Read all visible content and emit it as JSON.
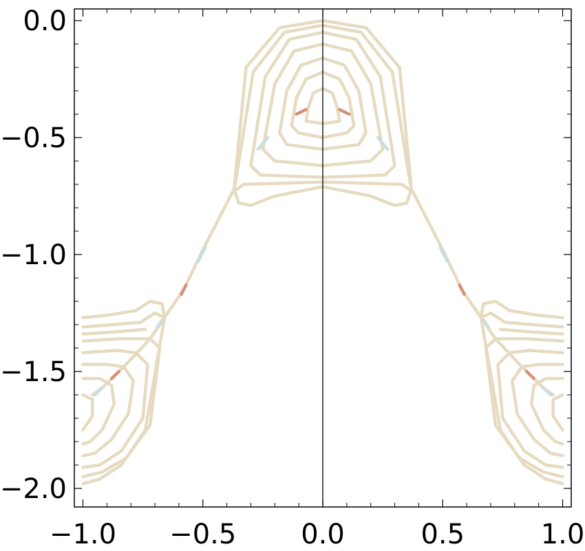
{
  "chart_data": {
    "type": "line",
    "title": "",
    "xlabel": "",
    "ylabel": "",
    "xlim": [
      -1.0,
      1.0
    ],
    "ylim": [
      -2.05,
      0.05
    ],
    "x_ticks": [
      -1.0,
      -0.5,
      0.0,
      0.5,
      1.0
    ],
    "x_tick_labels": [
      "−1.0",
      "−0.5",
      "0.0",
      "0.5",
      "1.0"
    ],
    "y_ticks": [
      0.0,
      -0.5,
      -1.0,
      -1.5,
      -2.0
    ],
    "y_tick_labels": [
      "0.0",
      "−0.5",
      "−1.0",
      "−1.5",
      "−2.0"
    ],
    "grid": false,
    "legend": "none",
    "center_vertical_line": 0.0,
    "line_color": "#e6dbc0",
    "highlight_colors": [
      "#d9907a",
      "#c8dedf"
    ],
    "series": [
      {
        "points": [
          [
            -0.07,
            -0.43
          ],
          [
            0,
            -0.44
          ],
          [
            0.07,
            -0.43
          ],
          [
            0.06,
            -0.37
          ],
          [
            0.04,
            -0.31
          ],
          [
            0,
            -0.29
          ],
          [
            -0.04,
            -0.31
          ],
          [
            -0.06,
            -0.37
          ],
          [
            -0.07,
            -0.43
          ]
        ]
      },
      {
        "points": [
          [
            -0.13,
            -0.45
          ],
          [
            -0.1,
            -0.48
          ],
          [
            0,
            -0.5
          ],
          [
            0.1,
            -0.48
          ],
          [
            0.13,
            -0.45
          ],
          [
            0.11,
            -0.33
          ],
          [
            0.07,
            -0.25
          ],
          [
            0,
            -0.22
          ],
          [
            -0.07,
            -0.25
          ],
          [
            -0.11,
            -0.33
          ],
          [
            -0.13,
            -0.45
          ]
        ]
      },
      {
        "points": [
          [
            -0.18,
            -0.48
          ],
          [
            -0.15,
            -0.53
          ],
          [
            0,
            -0.55
          ],
          [
            0.15,
            -0.53
          ],
          [
            0.18,
            -0.48
          ],
          [
            0.15,
            -0.3
          ],
          [
            0.09,
            -0.19
          ],
          [
            0,
            -0.16
          ],
          [
            -0.09,
            -0.19
          ],
          [
            -0.15,
            -0.3
          ],
          [
            -0.18,
            -0.48
          ]
        ]
      },
      {
        "points": [
          [
            -0.25,
            -0.55
          ],
          [
            -0.2,
            -0.6
          ],
          [
            0,
            -0.62
          ],
          [
            0.2,
            -0.6
          ],
          [
            0.25,
            -0.55
          ],
          [
            0.2,
            -0.27
          ],
          [
            0.12,
            -0.13
          ],
          [
            0,
            -0.1
          ],
          [
            -0.12,
            -0.13
          ],
          [
            -0.2,
            -0.27
          ],
          [
            -0.25,
            -0.55
          ]
        ]
      },
      {
        "points": [
          [
            -0.3,
            -0.62
          ],
          [
            -0.26,
            -0.66
          ],
          [
            0,
            -0.67
          ],
          [
            0.26,
            -0.66
          ],
          [
            0.3,
            -0.62
          ],
          [
            0.24,
            -0.24
          ],
          [
            0.14,
            -0.08
          ],
          [
            0,
            -0.05
          ],
          [
            -0.14,
            -0.08
          ],
          [
            -0.24,
            -0.24
          ],
          [
            -0.3,
            -0.62
          ]
        ]
      },
      {
        "points": [
          [
            -0.37,
            -0.73
          ],
          [
            -0.33,
            -0.7
          ],
          [
            0,
            -0.69
          ],
          [
            0.33,
            -0.7
          ],
          [
            0.37,
            -0.73
          ],
          [
            0.29,
            -0.22
          ],
          [
            0.16,
            -0.05
          ],
          [
            0,
            -0.02
          ],
          [
            -0.16,
            -0.05
          ],
          [
            -0.29,
            -0.22
          ],
          [
            -0.37,
            -0.73
          ]
        ]
      },
      {
        "points": [
          [
            -0.37,
            -0.72
          ],
          [
            -0.35,
            -0.78
          ],
          [
            -0.3,
            -0.79
          ],
          [
            -0.2,
            -0.75
          ],
          [
            0,
            -0.71
          ],
          [
            0.2,
            -0.75
          ],
          [
            0.3,
            -0.79
          ],
          [
            0.35,
            -0.78
          ],
          [
            0.37,
            -0.72
          ],
          [
            0.32,
            -0.2
          ],
          [
            0.18,
            -0.03
          ],
          [
            0,
            0
          ],
          [
            -0.18,
            -0.03
          ],
          [
            -0.32,
            -0.2
          ],
          [
            -0.37,
            -0.72
          ]
        ]
      },
      {
        "points": [
          [
            -0.37,
            -0.72
          ],
          [
            -0.5,
            -0.98
          ],
          [
            -0.58,
            -1.15
          ],
          [
            -0.66,
            -1.27
          ],
          [
            -0.72,
            -1.36
          ],
          [
            -0.82,
            -1.47
          ],
          [
            -0.92,
            -1.57
          ],
          [
            -0.96,
            -1.6
          ]
        ]
      },
      {
        "points": [
          [
            0.37,
            -0.72
          ],
          [
            0.5,
            -0.98
          ],
          [
            0.58,
            -1.15
          ],
          [
            0.66,
            -1.27
          ],
          [
            0.72,
            -1.36
          ],
          [
            0.82,
            -1.47
          ],
          [
            0.92,
            -1.57
          ],
          [
            0.96,
            -1.6
          ]
        ]
      },
      {
        "points": [
          [
            -1.0,
            -1.27
          ],
          [
            -0.9,
            -1.26
          ],
          [
            -0.78,
            -1.24
          ],
          [
            -0.72,
            -1.2
          ],
          [
            -0.67,
            -1.21
          ],
          [
            -0.66,
            -1.27
          ],
          [
            -0.74,
            -1.75
          ],
          [
            -0.84,
            -1.9
          ],
          [
            -0.93,
            -1.96
          ],
          [
            -1.0,
            -1.98
          ]
        ]
      },
      {
        "points": [
          [
            -1.0,
            -1.31
          ],
          [
            -0.88,
            -1.3
          ],
          [
            -0.76,
            -1.29
          ],
          [
            -0.7,
            -1.25
          ],
          [
            -0.66,
            -1.27
          ]
        ]
      },
      {
        "points": [
          [
            -1.0,
            -1.34
          ],
          [
            -0.86,
            -1.33
          ],
          [
            -0.74,
            -1.32
          ]
        ]
      },
      {
        "points": [
          [
            -1.0,
            -1.37
          ],
          [
            -0.84,
            -1.36
          ],
          [
            -0.72,
            -1.36
          ],
          [
            -0.68,
            -1.4
          ],
          [
            -0.72,
            -1.73
          ],
          [
            -0.82,
            -1.87
          ],
          [
            -0.92,
            -1.93
          ],
          [
            -1.0,
            -1.95
          ]
        ]
      },
      {
        "points": [
          [
            -1.0,
            -1.42
          ],
          [
            -0.86,
            -1.41
          ],
          [
            -0.78,
            -1.42
          ],
          [
            -0.73,
            -1.47
          ],
          [
            -0.75,
            -1.7
          ],
          [
            -0.84,
            -1.84
          ],
          [
            -0.93,
            -1.9
          ],
          [
            -1.0,
            -1.91
          ]
        ]
      },
      {
        "points": [
          [
            -1.0,
            -1.47
          ],
          [
            -0.9,
            -1.47
          ],
          [
            -0.83,
            -1.48
          ],
          [
            -0.79,
            -1.54
          ],
          [
            -0.81,
            -1.68
          ],
          [
            -0.88,
            -1.79
          ],
          [
            -0.95,
            -1.85
          ],
          [
            -1.0,
            -1.86
          ]
        ]
      },
      {
        "points": [
          [
            -1.0,
            -1.53
          ],
          [
            -0.93,
            -1.53
          ],
          [
            -0.88,
            -1.56
          ],
          [
            -0.87,
            -1.64
          ],
          [
            -0.92,
            -1.75
          ],
          [
            -0.97,
            -1.8
          ],
          [
            -1.0,
            -1.81
          ]
        ]
      },
      {
        "points": [
          [
            -1.0,
            -1.6
          ],
          [
            -0.96,
            -1.62
          ],
          [
            -0.96,
            -1.69
          ],
          [
            -1.0,
            -1.75
          ]
        ]
      },
      {
        "points": [
          [
            1.0,
            -1.27
          ],
          [
            0.9,
            -1.26
          ],
          [
            0.78,
            -1.24
          ],
          [
            0.72,
            -1.2
          ],
          [
            0.67,
            -1.21
          ],
          [
            0.66,
            -1.27
          ],
          [
            0.74,
            -1.75
          ],
          [
            0.84,
            -1.9
          ],
          [
            0.93,
            -1.96
          ],
          [
            1.0,
            -1.98
          ]
        ]
      },
      {
        "points": [
          [
            1.0,
            -1.31
          ],
          [
            0.88,
            -1.3
          ],
          [
            0.76,
            -1.29
          ],
          [
            0.7,
            -1.25
          ],
          [
            0.66,
            -1.27
          ]
        ]
      },
      {
        "points": [
          [
            1.0,
            -1.34
          ],
          [
            0.86,
            -1.33
          ],
          [
            0.74,
            -1.32
          ]
        ]
      },
      {
        "points": [
          [
            1.0,
            -1.37
          ],
          [
            0.84,
            -1.36
          ],
          [
            0.72,
            -1.36
          ],
          [
            0.68,
            -1.4
          ],
          [
            0.72,
            -1.73
          ],
          [
            0.82,
            -1.87
          ],
          [
            0.92,
            -1.93
          ],
          [
            1.0,
            -1.95
          ]
        ]
      },
      {
        "points": [
          [
            1.0,
            -1.42
          ],
          [
            0.86,
            -1.41
          ],
          [
            0.78,
            -1.42
          ],
          [
            0.73,
            -1.47
          ],
          [
            0.75,
            -1.7
          ],
          [
            0.84,
            -1.84
          ],
          [
            0.93,
            -1.9
          ],
          [
            1.0,
            -1.91
          ]
        ]
      },
      {
        "points": [
          [
            1.0,
            -1.47
          ],
          [
            0.9,
            -1.47
          ],
          [
            0.83,
            -1.48
          ],
          [
            0.79,
            -1.54
          ],
          [
            0.81,
            -1.68
          ],
          [
            0.88,
            -1.79
          ],
          [
            0.95,
            -1.85
          ],
          [
            1.0,
            -1.86
          ]
        ]
      },
      {
        "points": [
          [
            1.0,
            -1.53
          ],
          [
            0.93,
            -1.53
          ],
          [
            0.88,
            -1.56
          ],
          [
            0.87,
            -1.64
          ],
          [
            0.92,
            -1.75
          ],
          [
            0.97,
            -1.8
          ],
          [
            1.0,
            -1.81
          ]
        ]
      },
      {
        "points": [
          [
            1.0,
            -1.6
          ],
          [
            0.96,
            -1.62
          ],
          [
            0.96,
            -1.69
          ],
          [
            1.0,
            -1.75
          ]
        ]
      }
    ],
    "highlight_segments": [
      {
        "color": "#d9907a",
        "points": [
          [
            -0.11,
            -0.4
          ],
          [
            -0.07,
            -0.38
          ]
        ]
      },
      {
        "color": "#d9907a",
        "points": [
          [
            0.07,
            -0.38
          ],
          [
            0.11,
            -0.4
          ]
        ]
      },
      {
        "color": "#c8dedf",
        "points": [
          [
            -0.27,
            -0.55
          ],
          [
            -0.23,
            -0.5
          ]
        ]
      },
      {
        "color": "#c8dedf",
        "points": [
          [
            0.23,
            -0.5
          ],
          [
            0.27,
            -0.55
          ]
        ]
      },
      {
        "color": "#d9907a",
        "points": [
          [
            -0.59,
            -1.17
          ],
          [
            -0.57,
            -1.13
          ]
        ]
      },
      {
        "color": "#c8dedf",
        "points": [
          [
            -0.52,
            -1.03
          ],
          [
            -0.49,
            -0.97
          ]
        ]
      },
      {
        "color": "#d9907a",
        "points": [
          [
            0.57,
            -1.13
          ],
          [
            0.59,
            -1.17
          ]
        ]
      },
      {
        "color": "#c8dedf",
        "points": [
          [
            0.49,
            -0.97
          ],
          [
            0.52,
            -1.03
          ]
        ]
      },
      {
        "color": "#d9907a",
        "points": [
          [
            -0.88,
            -1.53
          ],
          [
            -0.85,
            -1.5
          ]
        ]
      },
      {
        "color": "#c8dedf",
        "points": [
          [
            -0.95,
            -1.6
          ],
          [
            -0.92,
            -1.57
          ]
        ]
      },
      {
        "color": "#d9907a",
        "points": [
          [
            0.85,
            -1.5
          ],
          [
            0.88,
            -1.53
          ]
        ]
      },
      {
        "color": "#c8dedf",
        "points": [
          [
            0.92,
            -1.57
          ],
          [
            0.95,
            -1.6
          ]
        ]
      },
      {
        "color": "#c8dedf",
        "points": [
          [
            -0.69,
            -1.31
          ],
          [
            -0.67,
            -1.28
          ]
        ]
      },
      {
        "color": "#c8dedf",
        "points": [
          [
            0.67,
            -1.28
          ],
          [
            0.69,
            -1.31
          ]
        ]
      }
    ]
  }
}
